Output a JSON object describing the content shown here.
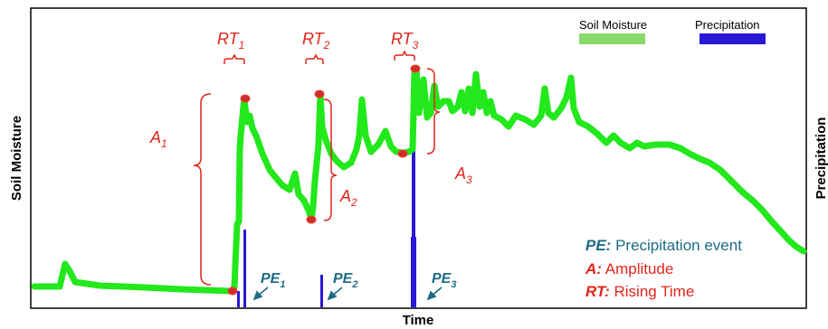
{
  "axes": {
    "x_label": "Time",
    "y_left_label": "Soil Moisture",
    "y_right_label": "Precipitation"
  },
  "legend": {
    "soil_moisture": {
      "label": "Soil Moisture",
      "color": "#89d96b"
    },
    "precipitation": {
      "label": "Precipitation",
      "color": "#2a18d8"
    }
  },
  "annotations": {
    "rising_times": [
      {
        "base": "RT",
        "sub": "1"
      },
      {
        "base": "RT",
        "sub": "2"
      },
      {
        "base": "RT",
        "sub": "3"
      }
    ],
    "amplitudes": [
      {
        "base": "A",
        "sub": "1"
      },
      {
        "base": "A",
        "sub": "2"
      },
      {
        "base": "A",
        "sub": "3"
      }
    ],
    "precip_events": [
      {
        "base": "PE",
        "sub": "1"
      },
      {
        "base": "PE",
        "sub": "2"
      },
      {
        "base": "PE",
        "sub": "3"
      }
    ]
  },
  "key": {
    "pe": {
      "abbr": "PE:",
      "text": " Precipitation event"
    },
    "a": {
      "abbr": "A:",
      "text": " Amplitude"
    },
    "rt": {
      "abbr": "RT:",
      "text": " Rising Time"
    }
  },
  "colors": {
    "moisture_line": "#22e81c",
    "precip_bar": "#2a18d8",
    "annotation": "#e0241b",
    "key_text": "#1d6b86"
  }
}
